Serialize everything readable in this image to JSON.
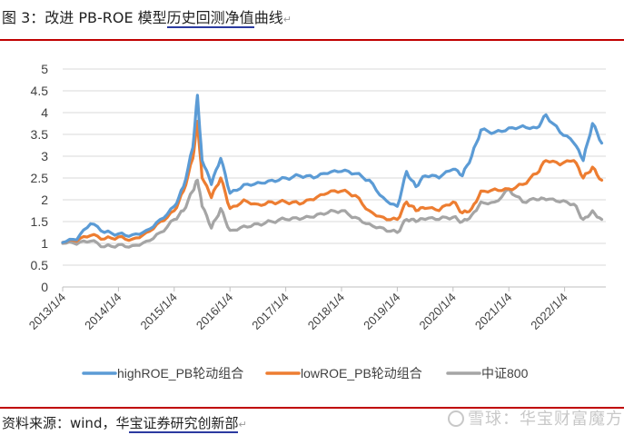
{
  "header": {
    "prefix": "图 3：改进 PB-ROE 模型",
    "underlined": "历史回测净值",
    "suffix": "曲线",
    "return_mark": "↵"
  },
  "footer": {
    "source_prefix": "资料来源：wind，华",
    "source_underlined": "宝证券研究创新部",
    "return_mark": "↵"
  },
  "watermark": {
    "text": "雪球：华宝财富魔方"
  },
  "colors": {
    "rule": "#c00000",
    "high": "#5b9bd5",
    "low": "#ed7d31",
    "index": "#a5a5a5",
    "grid": "#d9d9d9"
  },
  "chart_data": {
    "type": "line",
    "title": "改进 PB-ROE 模型历史回测净值曲线",
    "xlabel": "",
    "ylabel": "",
    "ylim": [
      0,
      5
    ],
    "yticks": [
      "0",
      "0.5",
      "1",
      "1.5",
      "2",
      "2.5",
      "3",
      "3.5",
      "4",
      "4.5",
      "5"
    ],
    "xticks": [
      "2013/1/4",
      "2014/1/4",
      "2015/1/4",
      "2016/1/4",
      "2017/1/4",
      "2018/1/4",
      "2019/1/4",
      "2020/1/4",
      "2021/1/4",
      "2022/1/4"
    ],
    "grid": true,
    "legend_position": "bottom",
    "x": [
      "2013/1",
      "2013/4",
      "2013/7",
      "2013/10",
      "2014/1",
      "2014/4",
      "2014/7",
      "2014/10",
      "2015/1",
      "2015/3",
      "2015/5",
      "2015/6",
      "2015/7",
      "2015/9",
      "2015/11",
      "2016/1",
      "2016/4",
      "2016/7",
      "2016/10",
      "2017/1",
      "2017/4",
      "2017/7",
      "2017/10",
      "2018/1",
      "2018/4",
      "2018/7",
      "2018/10",
      "2019/1",
      "2019/3",
      "2019/5",
      "2019/7",
      "2019/10",
      "2020/1",
      "2020/3",
      "2020/5",
      "2020/7",
      "2020/10",
      "2021/1",
      "2021/4",
      "2021/7",
      "2021/9",
      "2021/12",
      "2022/3",
      "2022/5",
      "2022/7",
      "2022/9"
    ],
    "series": [
      {
        "name": "highROE_PB轮动组合",
        "color": "#5b9bd5",
        "values": [
          1.02,
          1.08,
          1.45,
          1.25,
          1.22,
          1.2,
          1.3,
          1.55,
          1.85,
          2.3,
          3.2,
          4.4,
          2.9,
          2.35,
          2.95,
          2.15,
          2.35,
          2.4,
          2.45,
          2.5,
          2.55,
          2.5,
          2.6,
          2.65,
          2.6,
          2.45,
          2.05,
          1.85,
          2.65,
          2.3,
          2.55,
          2.5,
          2.7,
          2.55,
          3.0,
          3.6,
          3.55,
          3.65,
          3.7,
          3.65,
          3.95,
          3.55,
          3.3,
          2.9,
          3.75,
          3.3
        ]
      },
      {
        "name": "lowROE_PB轮动组合",
        "color": "#ed7d31",
        "values": [
          1.02,
          1.05,
          1.18,
          1.1,
          1.15,
          1.1,
          1.25,
          1.5,
          1.75,
          2.2,
          2.95,
          3.8,
          2.5,
          2.05,
          2.5,
          1.8,
          2.0,
          1.9,
          1.95,
          1.95,
          1.9,
          2.0,
          2.15,
          2.2,
          2.1,
          1.75,
          1.6,
          1.55,
          1.95,
          1.75,
          1.8,
          1.75,
          1.95,
          1.7,
          1.8,
          2.2,
          2.25,
          2.25,
          2.35,
          2.6,
          2.9,
          2.8,
          2.9,
          2.5,
          2.75,
          2.45
        ]
      },
      {
        "name": "中证800",
        "color": "#a5a5a5",
        "values": [
          1.0,
          0.98,
          1.05,
          0.92,
          0.97,
          0.95,
          1.05,
          1.25,
          1.55,
          1.75,
          2.2,
          2.45,
          1.85,
          1.35,
          1.8,
          1.3,
          1.4,
          1.45,
          1.5,
          1.55,
          1.55,
          1.6,
          1.7,
          1.75,
          1.6,
          1.45,
          1.35,
          1.25,
          1.55,
          1.5,
          1.55,
          1.55,
          1.6,
          1.5,
          1.65,
          1.95,
          1.95,
          2.25,
          1.95,
          2.0,
          2.0,
          1.95,
          1.9,
          1.55,
          1.75,
          1.55
        ]
      }
    ]
  }
}
